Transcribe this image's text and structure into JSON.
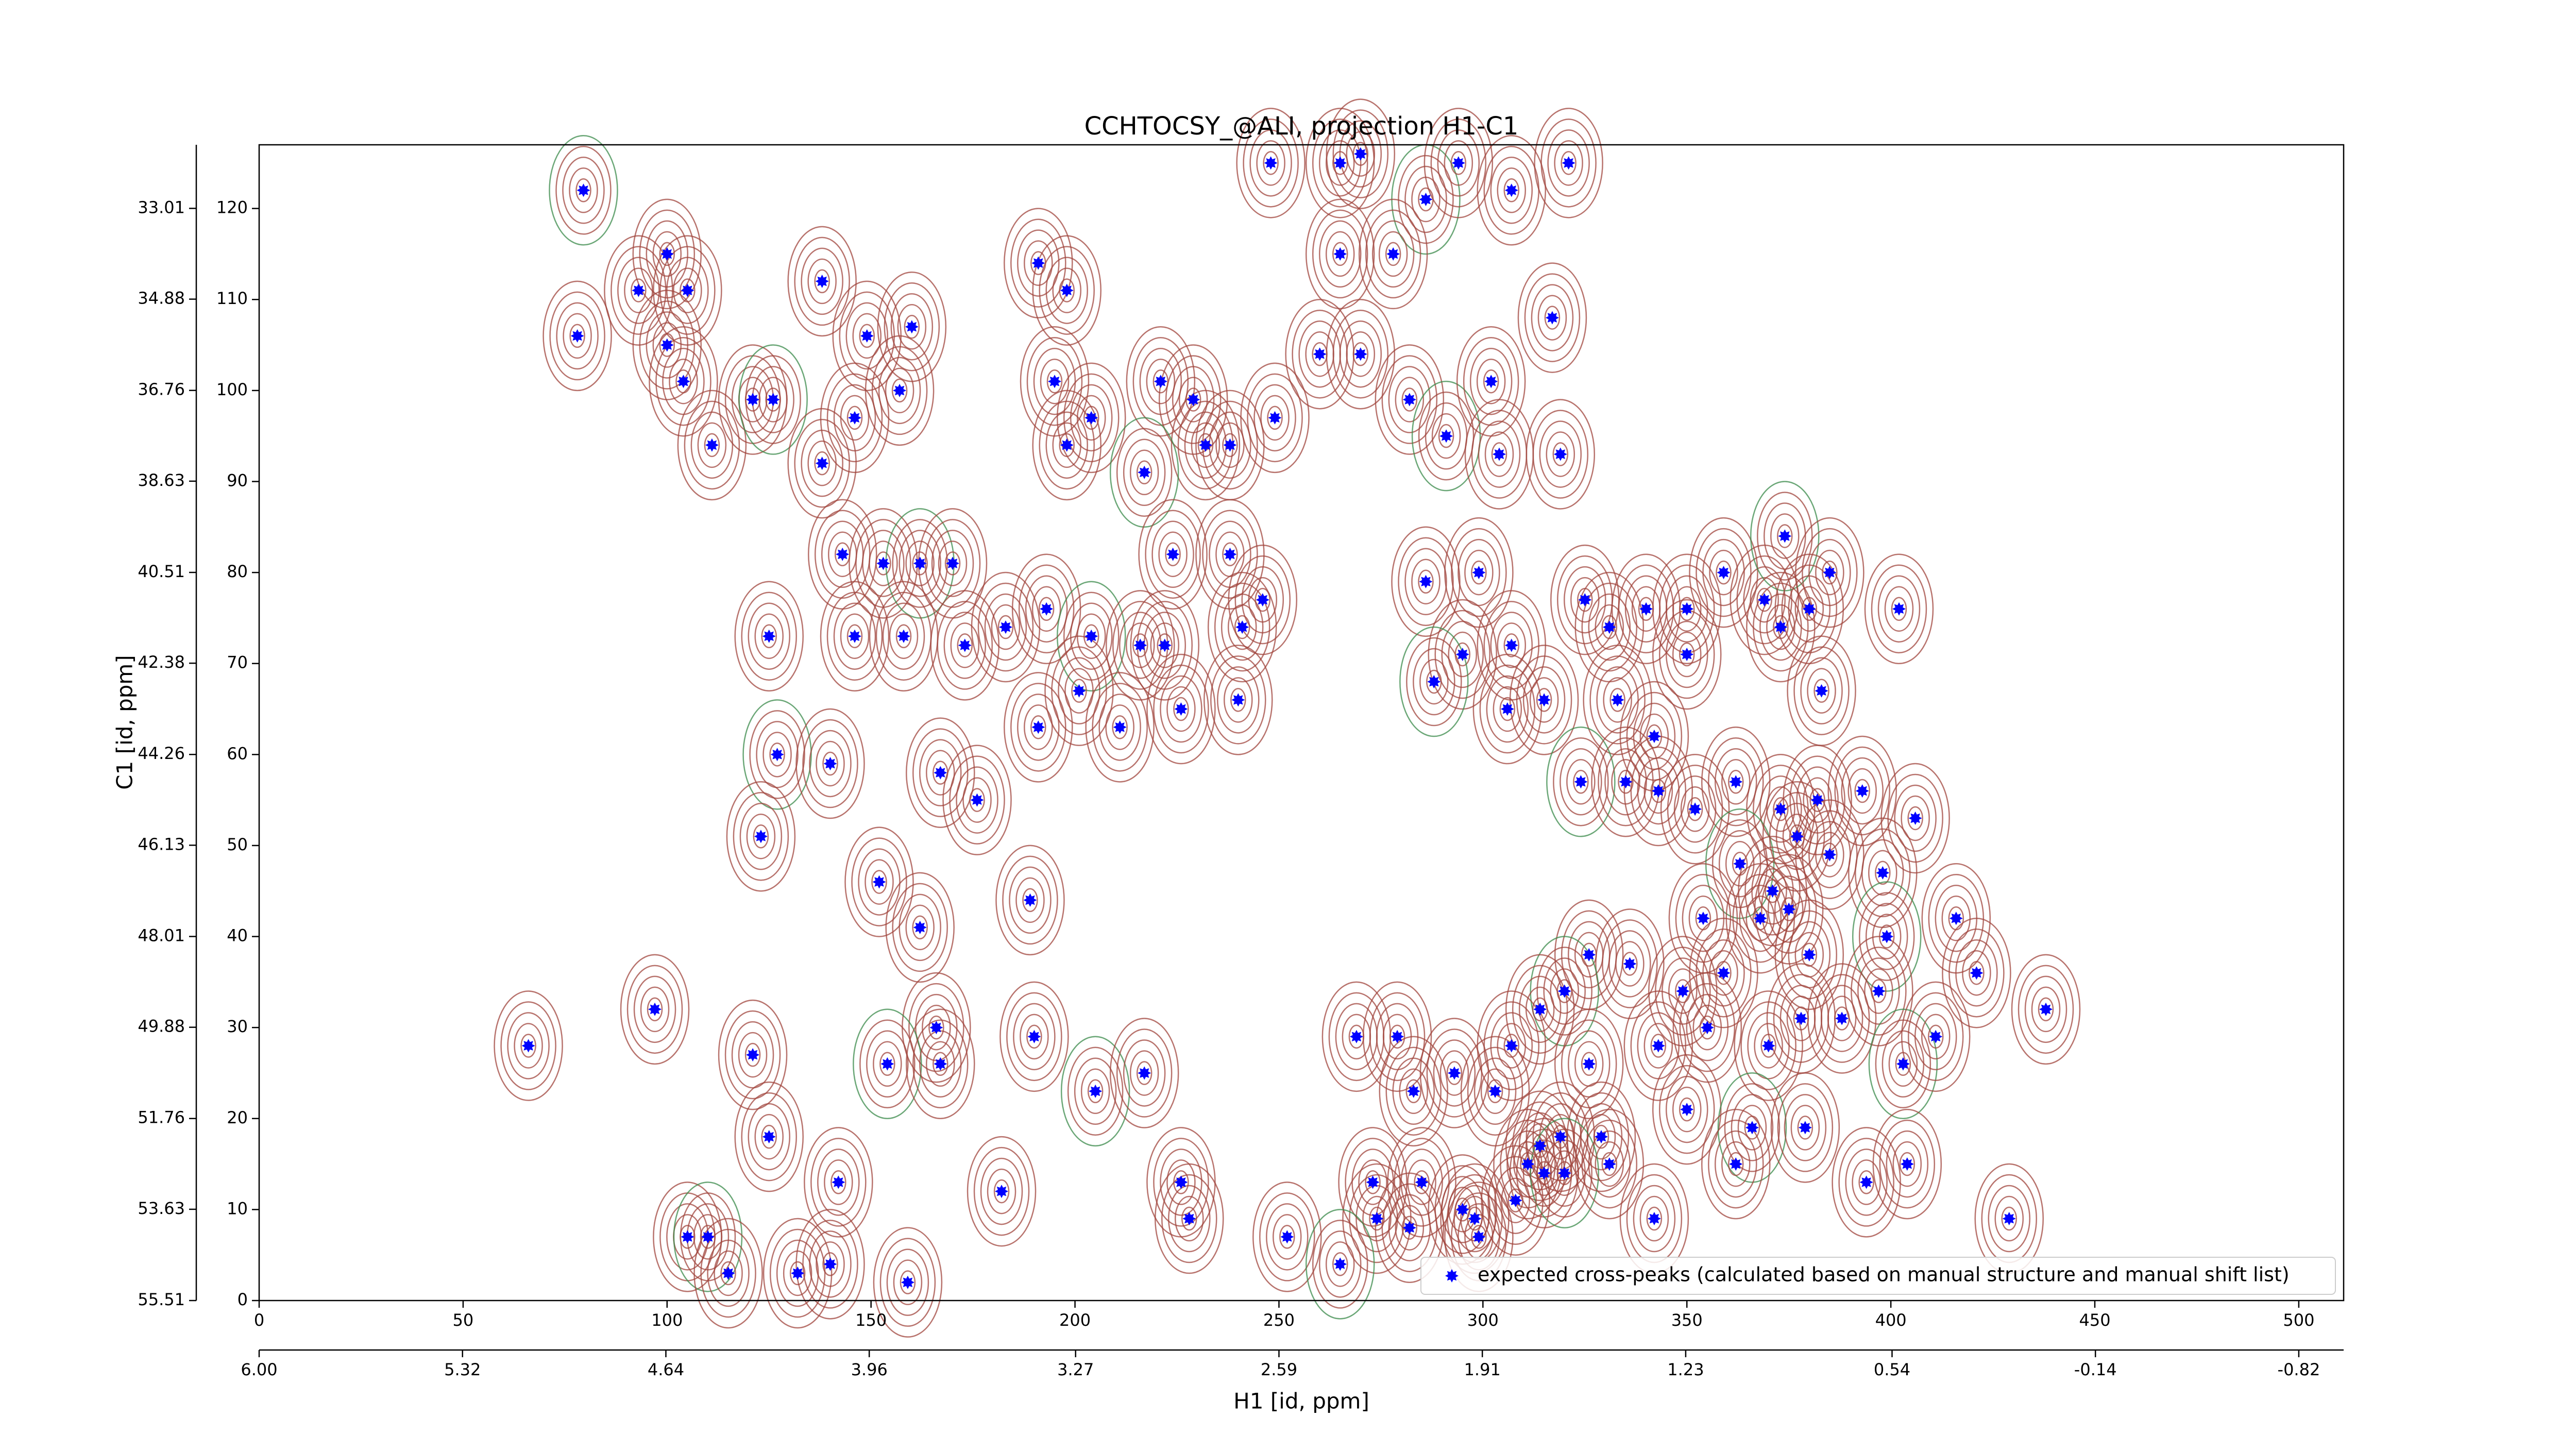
{
  "chart_data": {
    "type": "scatter",
    "title": "CCHTOCSY_@ALI, projection H1-C1",
    "x_label": "H1 [id, ppm]",
    "y_label": "C1 [id, ppm]",
    "xlim": [
      0,
      511
    ],
    "ylim": [
      0,
      127
    ],
    "xticks": [
      0,
      50,
      100,
      150,
      200,
      250,
      300,
      350,
      400,
      450,
      500
    ],
    "yticks": [
      0,
      10,
      20,
      30,
      40,
      50,
      60,
      70,
      80,
      90,
      100,
      110,
      120
    ],
    "x2lim": [
      6.0,
      -0.97
    ],
    "x2ticks": [
      {
        "value": 6,
        "label": "6.00"
      },
      5.32,
      4.64,
      3.96,
      3.27,
      2.59,
      1.91,
      1.23,
      0.54,
      -0.14,
      -0.82
    ],
    "y2lim": [
      55.51,
      31.7
    ],
    "y2ticks": [
      55.51,
      53.63,
      51.76,
      49.88,
      48.01,
      46.13,
      44.26,
      42.38,
      40.51,
      38.63,
      36.76,
      34.88,
      33.01
    ],
    "legend": "lower right",
    "series": [
      {
        "name": "expected cross-peaks (calculated based on manual structure and manual shift list)",
        "color": "#0000ff",
        "x": [
          79.5,
          100,
          105,
          93,
          78,
          100,
          104,
          111,
          121,
          126,
          138,
          149,
          160,
          157,
          146,
          138,
          143,
          153,
          162,
          170,
          125,
          146,
          158,
          173,
          183,
          193,
          191,
          204,
          201,
          211,
          216,
          222,
          226,
          240,
          241,
          246,
          127,
          140,
          167,
          176,
          123,
          152,
          189,
          162,
          166,
          154,
          167,
          190,
          66,
          97,
          121,
          125,
          142,
          182,
          205,
          217,
          226,
          228,
          252,
          140,
          159,
          132,
          105,
          110,
          115,
          195,
          204,
          198,
          221,
          229,
          232,
          238,
          217,
          224,
          238,
          249,
          191,
          198,
          248,
          265,
          270,
          286,
          294,
          307,
          321,
          265,
          278,
          260,
          270,
          282,
          291,
          302,
          317,
          304,
          319,
          299,
          286,
          307,
          295,
          288,
          306,
          315,
          325,
          331,
          340,
          350,
          359,
          369,
          374,
          380,
          385,
          402,
          333,
          342,
          350,
          373,
          383,
          324,
          335,
          343,
          352,
          362,
          373,
          382,
          393,
          406,
          363,
          371,
          377,
          385,
          398,
          354,
          368,
          375,
          380,
          399,
          416,
          421,
          438,
          397,
          359,
          349,
          336,
          326,
          320,
          314,
          307,
          326,
          343,
          355,
          370,
          378,
          388,
          403,
          411,
          283,
          293,
          303,
          319,
          314,
          329,
          350,
          366,
          379,
          362,
          404,
          394,
          429,
          342,
          311,
          315,
          320,
          331,
          273,
          285,
          295,
          308,
          274,
          282,
          299,
          265,
          269,
          279,
          298
        ],
        "values": [
          122,
          115,
          111,
          111,
          106,
          105,
          101,
          94,
          99,
          99,
          112,
          106,
          107,
          100,
          97,
          92,
          82,
          81,
          81,
          81,
          73,
          73,
          73,
          72,
          74,
          76,
          63,
          73,
          67,
          63,
          72,
          72,
          65,
          66,
          74,
          77,
          60,
          59,
          58,
          55,
          51,
          46,
          44,
          41,
          30,
          26,
          26,
          29,
          28,
          32,
          27,
          18,
          13,
          12,
          23,
          25,
          13,
          9,
          7,
          4,
          2,
          3,
          7,
          7,
          3,
          101,
          97,
          94,
          101,
          99,
          94,
          94,
          91,
          82,
          82,
          97,
          114,
          111,
          125,
          125,
          126,
          121,
          125,
          122,
          125,
          115,
          115,
          104,
          104,
          99,
          95,
          101,
          108,
          93,
          93,
          80,
          79,
          72,
          71,
          68,
          65,
          66,
          77,
          74,
          76,
          76,
          80,
          77,
          84,
          76,
          80,
          76,
          66,
          62,
          71,
          74,
          67,
          57,
          57,
          56,
          54,
          57,
          54,
          55,
          56,
          53,
          48,
          45,
          51,
          49,
          47,
          42,
          42,
          43,
          38,
          40,
          42,
          36,
          32,
          34,
          36,
          34,
          37,
          38,
          34,
          32,
          28,
          26,
          28,
          30,
          28,
          31,
          31,
          26,
          29,
          23,
          25,
          23,
          18,
          17,
          18,
          21,
          19,
          19,
          15,
          15,
          13,
          9,
          9,
          15,
          14,
          14,
          15,
          13,
          13,
          10,
          11,
          9,
          8,
          7,
          4,
          29,
          29,
          9
        ]
      }
    ]
  }
}
